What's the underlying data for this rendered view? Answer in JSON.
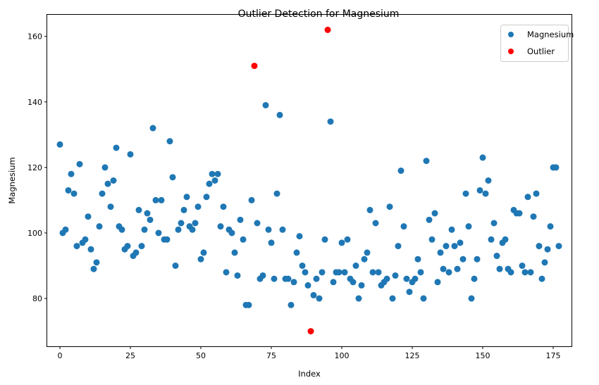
{
  "chart_data": {
    "type": "scatter",
    "title": "Outlier Detection for Magnesium",
    "xlabel": "Index",
    "ylabel": "Magnesium",
    "xlim": [
      -4.5,
      181.5
    ],
    "ylim": [
      65.4,
      166.6
    ],
    "xticks": [
      0,
      25,
      50,
      75,
      100,
      125,
      150,
      175
    ],
    "yticks": [
      80,
      100,
      120,
      140,
      160
    ],
    "grid": false,
    "legend_position": "top-right",
    "series": [
      {
        "name": "Magnesium",
        "color": "#1f77b4",
        "points": [
          [
            0,
            127
          ],
          [
            1,
            100
          ],
          [
            2,
            101
          ],
          [
            3,
            113
          ],
          [
            4,
            118
          ],
          [
            5,
            112
          ],
          [
            6,
            96
          ],
          [
            7,
            121
          ],
          [
            8,
            97
          ],
          [
            9,
            98
          ],
          [
            10,
            105
          ],
          [
            11,
            95
          ],
          [
            12,
            89
          ],
          [
            13,
            91
          ],
          [
            14,
            102
          ],
          [
            15,
            112
          ],
          [
            16,
            120
          ],
          [
            17,
            115
          ],
          [
            18,
            108
          ],
          [
            19,
            116
          ],
          [
            20,
            126
          ],
          [
            21,
            102
          ],
          [
            22,
            101
          ],
          [
            23,
            95
          ],
          [
            24,
            96
          ],
          [
            25,
            124
          ],
          [
            26,
            93
          ],
          [
            27,
            94
          ],
          [
            28,
            107
          ],
          [
            29,
            96
          ],
          [
            30,
            101
          ],
          [
            31,
            106
          ],
          [
            32,
            104
          ],
          [
            33,
            132
          ],
          [
            34,
            110
          ],
          [
            35,
            100
          ],
          [
            36,
            110
          ],
          [
            37,
            98
          ],
          [
            38,
            98
          ],
          [
            39,
            128
          ],
          [
            40,
            117
          ],
          [
            41,
            90
          ],
          [
            42,
            101
          ],
          [
            43,
            103
          ],
          [
            44,
            107
          ],
          [
            45,
            111
          ],
          [
            46,
            102
          ],
          [
            47,
            101
          ],
          [
            48,
            103
          ],
          [
            49,
            108
          ],
          [
            50,
            92
          ],
          [
            51,
            94
          ],
          [
            52,
            111
          ],
          [
            53,
            115
          ],
          [
            54,
            118
          ],
          [
            55,
            116
          ],
          [
            56,
            118
          ],
          [
            57,
            102
          ],
          [
            58,
            108
          ],
          [
            59,
            88
          ],
          [
            60,
            101
          ],
          [
            61,
            100
          ],
          [
            62,
            94
          ],
          [
            63,
            87
          ],
          [
            64,
            104
          ],
          [
            65,
            98
          ],
          [
            66,
            78
          ],
          [
            67,
            78
          ],
          [
            68,
            110
          ],
          [
            70,
            103
          ],
          [
            71,
            86
          ],
          [
            72,
            87
          ],
          [
            73,
            139
          ],
          [
            74,
            101
          ],
          [
            75,
            97
          ],
          [
            76,
            86
          ],
          [
            77,
            112
          ],
          [
            78,
            136
          ],
          [
            79,
            101
          ],
          [
            80,
            86
          ],
          [
            81,
            86
          ],
          [
            82,
            78
          ],
          [
            83,
            85
          ],
          [
            84,
            94
          ],
          [
            85,
            99
          ],
          [
            86,
            90
          ],
          [
            87,
            88
          ],
          [
            88,
            84
          ],
          [
            90,
            81
          ],
          [
            91,
            86
          ],
          [
            92,
            80
          ],
          [
            93,
            88
          ],
          [
            94,
            98
          ],
          [
            96,
            134
          ],
          [
            97,
            85
          ],
          [
            98,
            88
          ],
          [
            99,
            88
          ],
          [
            100,
            97
          ],
          [
            101,
            88
          ],
          [
            102,
            98
          ],
          [
            103,
            86
          ],
          [
            104,
            85
          ],
          [
            105,
            90
          ],
          [
            106,
            80
          ],
          [
            107,
            84
          ],
          [
            108,
            92
          ],
          [
            109,
            94
          ],
          [
            110,
            107
          ],
          [
            111,
            88
          ],
          [
            112,
            103
          ],
          [
            113,
            88
          ],
          [
            114,
            84
          ],
          [
            115,
            85
          ],
          [
            116,
            86
          ],
          [
            117,
            108
          ],
          [
            118,
            80
          ],
          [
            119,
            87
          ],
          [
            120,
            96
          ],
          [
            121,
            119
          ],
          [
            122,
            102
          ],
          [
            123,
            86
          ],
          [
            124,
            82
          ],
          [
            125,
            85
          ],
          [
            126,
            86
          ],
          [
            127,
            92
          ],
          [
            128,
            88
          ],
          [
            129,
            80
          ],
          [
            130,
            122
          ],
          [
            131,
            104
          ],
          [
            132,
            98
          ],
          [
            133,
            106
          ],
          [
            134,
            85
          ],
          [
            135,
            94
          ],
          [
            136,
            89
          ],
          [
            137,
            96
          ],
          [
            138,
            88
          ],
          [
            139,
            101
          ],
          [
            140,
            96
          ],
          [
            141,
            89
          ],
          [
            142,
            97
          ],
          [
            143,
            92
          ],
          [
            144,
            112
          ],
          [
            145,
            102
          ],
          [
            146,
            80
          ],
          [
            147,
            86
          ],
          [
            148,
            92
          ],
          [
            149,
            113
          ],
          [
            150,
            123
          ],
          [
            151,
            112
          ],
          [
            152,
            116
          ],
          [
            153,
            98
          ],
          [
            154,
            103
          ],
          [
            155,
            93
          ],
          [
            156,
            89
          ],
          [
            157,
            97
          ],
          [
            158,
            98
          ],
          [
            159,
            89
          ],
          [
            160,
            88
          ],
          [
            161,
            107
          ],
          [
            162,
            106
          ],
          [
            163,
            106
          ],
          [
            164,
            90
          ],
          [
            165,
            88
          ],
          [
            166,
            111
          ],
          [
            167,
            88
          ],
          [
            168,
            105
          ],
          [
            169,
            112
          ],
          [
            170,
            96
          ],
          [
            171,
            86
          ],
          [
            172,
            91
          ],
          [
            173,
            95
          ],
          [
            174,
            102
          ],
          [
            175,
            120
          ],
          [
            176,
            120
          ],
          [
            177,
            96
          ]
        ]
      },
      {
        "name": "Outlier",
        "color": "#ff0000",
        "points": [
          [
            69,
            151
          ],
          [
            89,
            70
          ],
          [
            95,
            162
          ]
        ]
      }
    ]
  }
}
